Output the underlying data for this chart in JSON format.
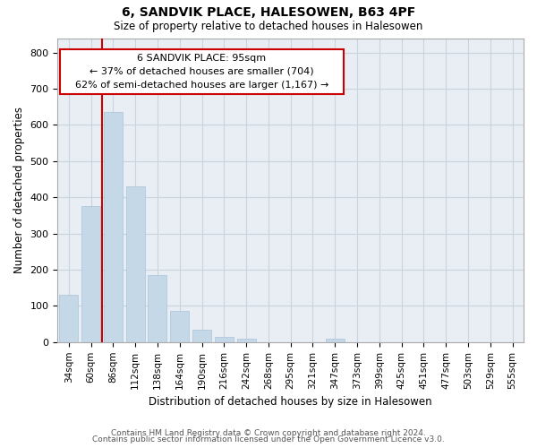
{
  "title": "6, SANDVIK PLACE, HALESOWEN, B63 4PF",
  "subtitle": "Size of property relative to detached houses in Halesowen",
  "xlabel": "Distribution of detached houses by size in Halesowen",
  "ylabel": "Number of detached properties",
  "bar_labels": [
    "34sqm",
    "60sqm",
    "86sqm",
    "112sqm",
    "138sqm",
    "164sqm",
    "190sqm",
    "216sqm",
    "242sqm",
    "268sqm",
    "295sqm",
    "321sqm",
    "347sqm",
    "373sqm",
    "399sqm",
    "425sqm",
    "451sqm",
    "477sqm",
    "503sqm",
    "529sqm",
    "555sqm"
  ],
  "bar_values": [
    130,
    375,
    635,
    430,
    185,
    85,
    35,
    15,
    10,
    0,
    0,
    0,
    10,
    0,
    0,
    0,
    0,
    0,
    0,
    0,
    0
  ],
  "bar_color": "#c5d8e8",
  "bar_edge_color": "#a8c4d8",
  "highlight_bar_index": 2,
  "annotation_title": "6 SANDVIK PLACE: 95sqm",
  "annotation_line1": "← 37% of detached houses are smaller (704)",
  "annotation_line2": "62% of semi-detached houses are larger (1,167) →",
  "annotation_box_color": "#cc0000",
  "annotation_box_fill": "#ffffff",
  "ylim": [
    0,
    840
  ],
  "yticks": [
    0,
    100,
    200,
    300,
    400,
    500,
    600,
    700,
    800
  ],
  "footer_line1": "Contains HM Land Registry data © Crown copyright and database right 2024.",
  "footer_line2": "Contains public sector information licensed under the Open Government Licence v3.0.",
  "bg_color": "#ffffff",
  "plot_bg_color": "#e8eef4",
  "grid_color": "#c8d4de",
  "highlight_line_color": "#cc0000"
}
